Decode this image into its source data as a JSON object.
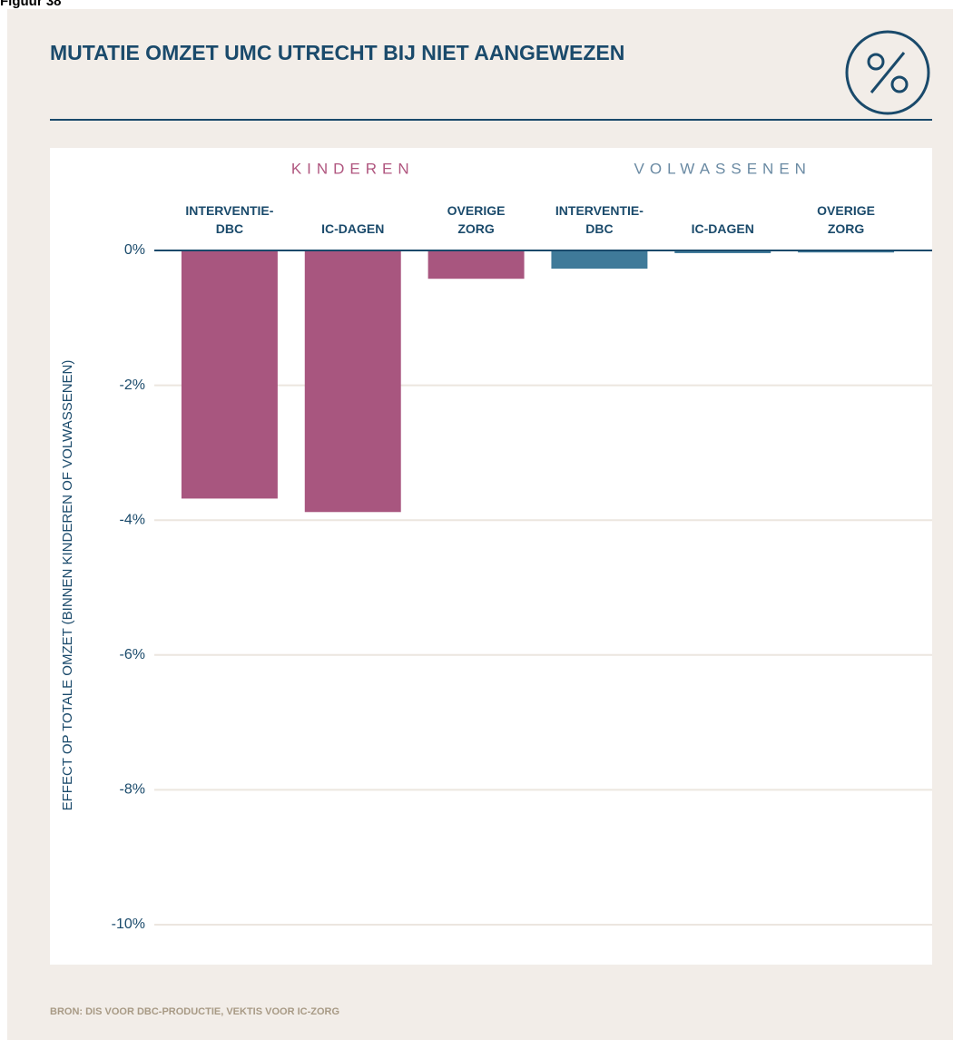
{
  "figure_label": "Figuur 38",
  "chart_data": {
    "type": "bar",
    "title": "MUTATIE OMZET UMC UTRECHT BIJ NIET AANGEWEZEN",
    "y_label": "EFFECT OP TOTALE OMZET (BINNEN KINDEREN OF VOLWASSENEN)",
    "source": "BRON: DIS VOOR DBC-PRODUCTIE, VEKTIS VOOR IC-ZORG",
    "categories": [
      "INTERVENTIE-\nDBC",
      "IC-DAGEN",
      "OVERIGE\nZORG",
      "INTERVENTIE-\nDBC",
      "IC-DAGEN",
      "OVERIGE\nZORG"
    ],
    "series": [
      {
        "name": "KINDEREN",
        "color": "#a8567f",
        "values": [
          -3.68,
          -3.88,
          -0.42,
          null,
          null,
          null
        ]
      },
      {
        "name": "VOLWASSENEN",
        "color": "#3f7a99",
        "values": [
          null,
          null,
          null,
          -0.27,
          -0.04,
          -0.03
        ]
      }
    ],
    "ylim": [
      -10,
      0
    ],
    "yticks": [
      {
        "value": 0,
        "label": "0%"
      },
      {
        "value": -2,
        "label": "-2%"
      },
      {
        "value": -4,
        "label": "-4%"
      },
      {
        "value": -6,
        "label": "-6%"
      },
      {
        "value": -8,
        "label": "-8%"
      },
      {
        "value": -10,
        "label": "-10%"
      }
    ],
    "grid": true
  }
}
